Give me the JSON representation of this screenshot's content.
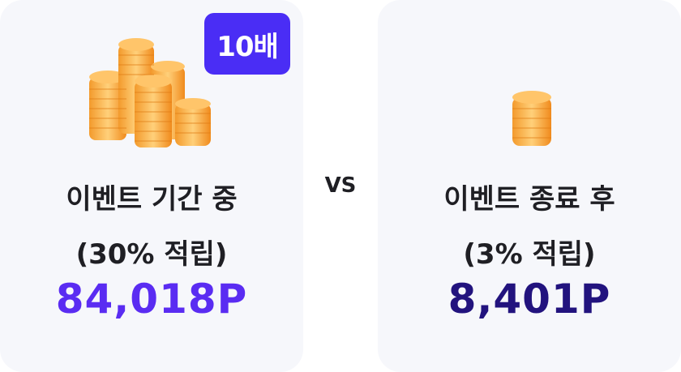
{
  "event": {
    "badge": "10배",
    "title": "이벤트 기간 중",
    "rate": "(30% 적립)",
    "points": "84,018P"
  },
  "comparison": {
    "vs_label": "VS"
  },
  "after": {
    "title": "이벤트 종료 후",
    "rate": "(3% 적립)",
    "points": "8,401P"
  },
  "icons": {
    "event_coins": "coin-stacks-icon",
    "after_coins": "coin-stack-icon"
  },
  "colors": {
    "accent": "#4a2df5",
    "event_points": "#5a2cf2",
    "after_points": "#22137e",
    "coin": "#f7a23a"
  }
}
